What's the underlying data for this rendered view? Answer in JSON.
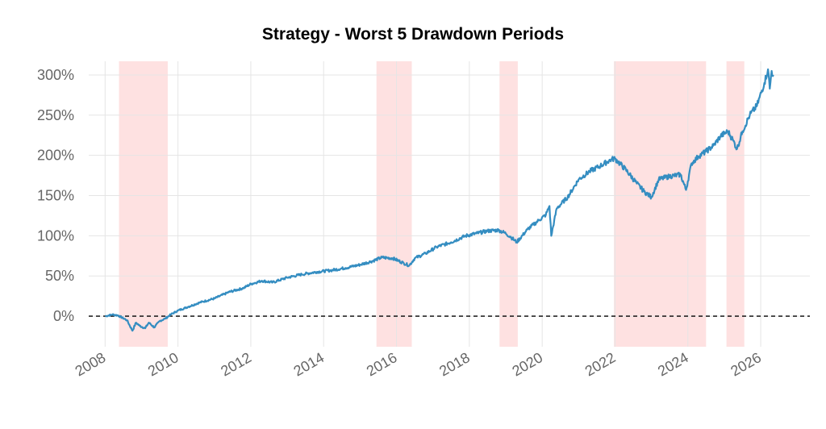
{
  "chart_data": {
    "type": "line",
    "title": "Strategy - Worst 5 Drawdown Periods",
    "xlabel": "",
    "ylabel": "",
    "xlim": [
      2007.55,
      2027.35
    ],
    "ylim": [
      -38,
      317
    ],
    "yticks": [
      0,
      50,
      100,
      150,
      200,
      250,
      300
    ],
    "ytick_labels": [
      "0%",
      "50%",
      "100%",
      "150%",
      "200%",
      "250%",
      "300%"
    ],
    "xticks": [
      2008,
      2010,
      2012,
      2014,
      2016,
      2018,
      2020,
      2022,
      2024,
      2026
    ],
    "xtick_labels": [
      "2008",
      "2010",
      "2012",
      "2014",
      "2016",
      "2018",
      "2020",
      "2022",
      "2024",
      "2026"
    ],
    "grid": true,
    "baseline": 0,
    "line_color": "#348dc1",
    "shade_color": "#fee1e1",
    "drawdown_periods": [
      {
        "start": 2008.38,
        "end": 2009.72
      },
      {
        "start": 2015.45,
        "end": 2016.42
      },
      {
        "start": 2018.83,
        "end": 2019.33
      },
      {
        "start": 2021.97,
        "end": 2024.5
      },
      {
        "start": 2025.06,
        "end": 2025.55
      }
    ],
    "series": [
      {
        "name": "",
        "x": [
          2008.0,
          2008.2,
          2008.35,
          2008.6,
          2008.75,
          2008.85,
          2008.95,
          2009.1,
          2009.2,
          2009.35,
          2009.5,
          2009.65,
          2009.8,
          2010.0,
          2010.3,
          2010.6,
          2011.0,
          2011.4,
          2011.8,
          2012.0,
          2012.3,
          2012.6,
          2013.0,
          2013.4,
          2013.8,
          2014.2,
          2014.6,
          2015.0,
          2015.3,
          2015.6,
          2015.9,
          2016.2,
          2016.35,
          2016.5,
          2016.8,
          2017.1,
          2017.5,
          2017.9,
          2018.2,
          2018.5,
          2018.8,
          2019.0,
          2019.15,
          2019.3,
          2019.6,
          2019.9,
          2020.1,
          2020.2,
          2020.25,
          2020.4,
          2020.7,
          2021.0,
          2021.3,
          2021.6,
          2021.9,
          2022.0,
          2022.3,
          2022.6,
          2022.8,
          2023.0,
          2023.2,
          2023.5,
          2023.8,
          2023.95,
          2024.1,
          2024.3,
          2024.5,
          2024.7,
          2024.9,
          2025.1,
          2025.25,
          2025.35,
          2025.5,
          2025.7,
          2025.9,
          2026.1,
          2026.2,
          2026.25,
          2026.3,
          2026.35
        ],
        "values": [
          0,
          2,
          1,
          -5,
          -18,
          -8,
          -12,
          -15,
          -8,
          -14,
          -6,
          -3,
          2,
          7,
          12,
          17,
          22,
          30,
          35,
          40,
          44,
          42,
          48,
          52,
          55,
          57,
          60,
          64,
          68,
          73,
          72,
          66,
          63,
          72,
          78,
          86,
          92,
          100,
          103,
          106,
          107,
          103,
          98,
          92,
          108,
          119,
          126,
          137,
          100,
          134,
          148,
          170,
          180,
          187,
          195,
          196,
          182,
          165,
          155,
          148,
          170,
          174,
          176,
          157,
          190,
          199,
          205,
          212,
          224,
          230,
          218,
          208,
          230,
          250,
          262,
          290,
          307,
          283,
          305,
          300
        ]
      }
    ]
  }
}
